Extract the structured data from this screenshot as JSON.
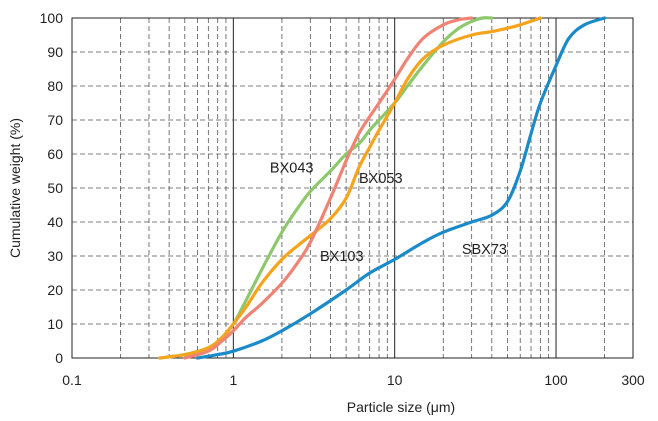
{
  "chart_data": {
    "type": "line",
    "xlabel": "Particle size (μm)",
    "ylabel": "Cumulative weight (%)",
    "x_scale": "log",
    "xlim": [
      0.1,
      300
    ],
    "ylim": [
      0,
      100
    ],
    "x_ticks": [
      {
        "value": 0.1,
        "label": "0.1"
      },
      {
        "value": 1,
        "label": "1"
      },
      {
        "value": 10,
        "label": "10"
      },
      {
        "value": 100,
        "label": "100"
      },
      {
        "value": 300,
        "label": "300"
      }
    ],
    "y_ticks": [
      {
        "value": 0,
        "label": "0"
      },
      {
        "value": 10,
        "label": "10"
      },
      {
        "value": 20,
        "label": "20"
      },
      {
        "value": 30,
        "label": "30"
      },
      {
        "value": 40,
        "label": "40"
      },
      {
        "value": 50,
        "label": "50"
      },
      {
        "value": 60,
        "label": "60"
      },
      {
        "value": 70,
        "label": "70"
      },
      {
        "value": 80,
        "label": "80"
      },
      {
        "value": 90,
        "label": "90"
      },
      {
        "value": 100,
        "label": "100"
      }
    ],
    "grid": {
      "major_x": "solid",
      "minor_x": "dashed",
      "y": "dashed"
    },
    "legend": "none (inline labels)",
    "series": [
      {
        "name": "BX043",
        "color": "#8dc86c",
        "x": [
          0.35,
          0.5,
          0.7,
          0.85,
          1.0,
          1.2,
          1.5,
          2.0,
          2.5,
          3.0,
          4.0,
          5.0,
          6.0,
          7.0,
          8.0,
          10,
          12,
          15,
          20,
          25,
          30,
          35,
          40
        ],
        "y": [
          0,
          1,
          3,
          6,
          10,
          17,
          26,
          37,
          44,
          49,
          55,
          60,
          63,
          67,
          70,
          75,
          80,
          86,
          93,
          97,
          99,
          100,
          100
        ]
      },
      {
        "name": "BX053",
        "color": "#f6a41d",
        "x": [
          0.35,
          0.5,
          0.7,
          0.85,
          1.0,
          1.2,
          1.5,
          2.0,
          2.5,
          3.0,
          4.0,
          5.0,
          6.0,
          7.0,
          8.0,
          10,
          12,
          15,
          20,
          30,
          40,
          50,
          60,
          80
        ],
        "y": [
          0,
          1,
          3,
          6,
          10,
          15,
          22,
          29,
          33,
          36,
          41,
          47,
          56,
          62,
          67,
          75,
          82,
          88,
          92,
          95,
          96,
          97,
          98,
          100
        ]
      },
      {
        "name": "BX103",
        "color": "#ef8474",
        "x": [
          0.5,
          0.7,
          0.85,
          1.0,
          1.2,
          1.5,
          2.0,
          2.5,
          3.0,
          4.0,
          5.0,
          6.0,
          7.0,
          8.0,
          10,
          12,
          15,
          20,
          25,
          30
        ],
        "y": [
          0,
          2,
          5,
          8,
          12,
          16,
          22,
          28,
          34,
          47,
          58,
          66,
          71,
          75,
          82,
          88,
          94,
          98,
          99.5,
          100
        ]
      },
      {
        "name": "SBX73",
        "color": "#1b8ac8",
        "x": [
          0.6,
          0.8,
          1.0,
          1.5,
          2.0,
          3.0,
          5.0,
          7.0,
          10,
          15,
          20,
          30,
          40,
          50,
          60,
          70,
          80,
          100,
          120,
          150,
          200
        ],
        "y": [
          0,
          1,
          2,
          5,
          8,
          13,
          20,
          25,
          29,
          34,
          37,
          40,
          42,
          46,
          55,
          66,
          75,
          86,
          94,
          98,
          100
        ]
      }
    ],
    "annotations": [
      {
        "text": "BX043",
        "series": "BX043",
        "x": 2.3,
        "y": 56
      },
      {
        "text": "BX053",
        "series": "BX053",
        "x": 8.2,
        "y": 53
      },
      {
        "text": "BX103",
        "series": "BX103",
        "x": 4.7,
        "y": 30
      },
      {
        "text": "SBX73",
        "series": "SBX73",
        "x": 36,
        "y": 32
      }
    ]
  }
}
